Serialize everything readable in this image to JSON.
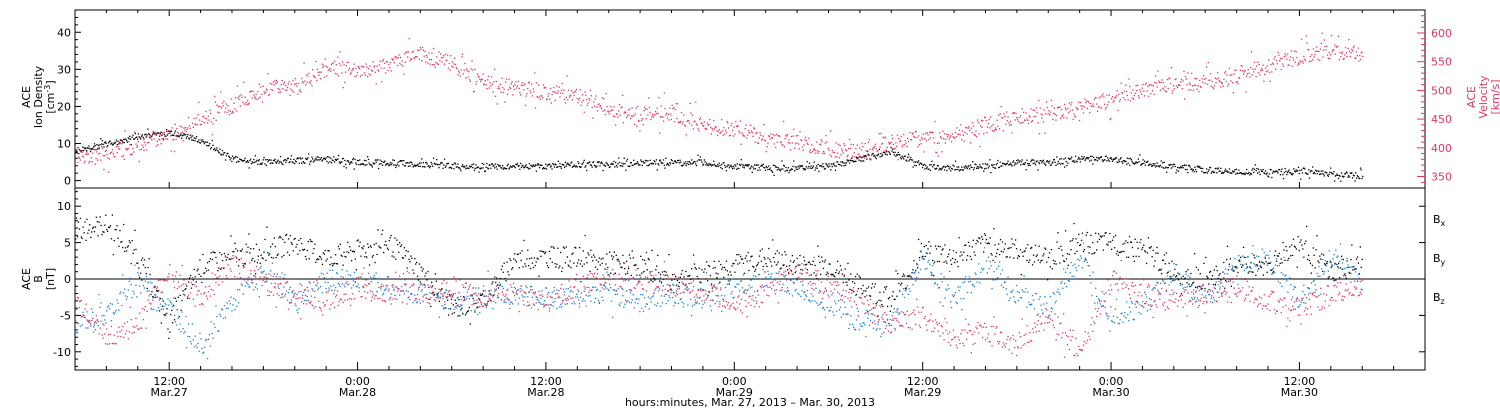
{
  "chart_data": [
    {
      "type": "scatter",
      "panel": "top",
      "ylabel": {
        "line1": "ACE",
        "line2": "Ion Density",
        "unit_pre": "[cm",
        "unit_sup": "-3",
        "unit_post": "]"
      },
      "y2label": {
        "line1": "ACE",
        "line2": "Velocity",
        "unit": "[km/s]"
      },
      "ylim": [
        -2,
        46
      ],
      "y2lim": [
        330,
        640
      ],
      "yticks": [
        "0",
        "10",
        "20",
        "30",
        "40"
      ],
      "y2ticks": [
        "350",
        "400",
        "450",
        "500",
        "550",
        "600"
      ],
      "colors": {
        "density": "#000000",
        "velocity": "#e8335e"
      },
      "series": [
        {
          "name": "",
          "color": "#000000",
          "axis": "left",
          "x_hours": [
            0,
            2,
            4,
            6,
            8,
            10,
            12,
            14,
            16,
            18,
            20,
            22,
            24,
            26,
            28,
            30,
            32,
            34,
            36,
            38,
            40,
            42,
            44,
            46,
            48,
            50,
            52,
            54,
            56,
            58,
            60,
            62,
            64,
            66,
            68,
            70,
            72,
            74,
            76,
            78,
            80,
            82
          ],
          "values": [
            8,
            10,
            12,
            13,
            11,
            6,
            5,
            5.5,
            6,
            5,
            5,
            4.5,
            4,
            4,
            4,
            4,
            4.5,
            4.5,
            5,
            5,
            5,
            4,
            3.5,
            3.5,
            4,
            6,
            8,
            4,
            3.5,
            4,
            5,
            5,
            6,
            6,
            5,
            4,
            3,
            2.5,
            2.5,
            2.5,
            2,
            1.5
          ]
        },
        {
          "name": "",
          "color": "#e8335e",
          "axis": "right",
          "x_hours": [
            0,
            2,
            4,
            6,
            8,
            10,
            12,
            14,
            16,
            18,
            20,
            22,
            24,
            26,
            28,
            30,
            32,
            34,
            36,
            38,
            40,
            42,
            44,
            46,
            48,
            50,
            52,
            54,
            56,
            58,
            60,
            62,
            64,
            66,
            68,
            70,
            72,
            74,
            76,
            78,
            80,
            82
          ],
          "values": [
            385,
            392,
            405,
            425,
            450,
            475,
            505,
            505,
            540,
            535,
            545,
            565,
            548,
            515,
            505,
            498,
            490,
            470,
            460,
            462,
            440,
            435,
            415,
            410,
            398,
            395,
            410,
            418,
            425,
            440,
            455,
            460,
            470,
            485,
            500,
            510,
            515,
            525,
            545,
            560,
            570,
            565
          ]
        }
      ]
    },
    {
      "type": "scatter",
      "panel": "bottom",
      "ylabel": {
        "line1": "ACE",
        "line2": "B",
        "unit": "[nT]"
      },
      "ylim": [
        -12.5,
        12.5
      ],
      "yticks": [
        "10",
        "5",
        "0",
        "-5",
        "-10"
      ],
      "zero_line": true,
      "legend": {
        "placement": "right",
        "entries": [
          {
            "base": "B",
            "sub": "x",
            "color": "#000000"
          },
          {
            "base": "B",
            "sub": "y",
            "color": "#1a7fdb"
          },
          {
            "base": "B",
            "sub": "z",
            "color": "#e8335e"
          }
        ]
      },
      "series": [
        {
          "name": "Bx",
          "color": "#000000",
          "x_hours": [
            0,
            2,
            4,
            6,
            8,
            10,
            12,
            14,
            16,
            18,
            20,
            22,
            24,
            26,
            28,
            30,
            32,
            34,
            36,
            38,
            40,
            42,
            44,
            46,
            48,
            50,
            52,
            54,
            56,
            58,
            60,
            62,
            64,
            66,
            68,
            70,
            72,
            74,
            76,
            78,
            80,
            82
          ],
          "values": [
            7,
            7.5,
            3,
            -6,
            2,
            3,
            4,
            5,
            3,
            4,
            5,
            1,
            -4,
            -3,
            3,
            3,
            3,
            2,
            2,
            0,
            1,
            2,
            3,
            2,
            2,
            -1,
            -3,
            4,
            3,
            5,
            4,
            3,
            5,
            5,
            4,
            1,
            0,
            2,
            2,
            5,
            1,
            2
          ]
        },
        {
          "name": "By",
          "color": "#1a7fdb",
          "x_hours": [
            0,
            2,
            4,
            6,
            8,
            10,
            12,
            14,
            16,
            18,
            20,
            22,
            24,
            26,
            28,
            30,
            32,
            34,
            36,
            38,
            40,
            42,
            44,
            46,
            48,
            50,
            52,
            54,
            56,
            58,
            60,
            62,
            64,
            66,
            68,
            70,
            72,
            74,
            76,
            78,
            80,
            82
          ],
          "values": [
            -6,
            -5,
            0,
            -4,
            -9,
            -3,
            1,
            -3,
            0,
            0,
            -1,
            -2,
            -3,
            -2,
            -2,
            -2.5,
            -2.5,
            -2,
            -3,
            -2,
            -2.5,
            -1,
            0,
            -1,
            -3,
            -6,
            -6,
            3,
            -3,
            2,
            -2,
            -4,
            3,
            -5,
            -4,
            1,
            -3,
            2,
            3,
            -3,
            3,
            0
          ]
        },
        {
          "name": "Bz",
          "color": "#e8335e",
          "x_hours": [
            0,
            2,
            4,
            6,
            8,
            10,
            12,
            14,
            16,
            18,
            20,
            22,
            24,
            26,
            28,
            30,
            32,
            34,
            36,
            38,
            40,
            42,
            44,
            46,
            48,
            50,
            52,
            54,
            56,
            58,
            60,
            62,
            64,
            66,
            68,
            70,
            72,
            74,
            76,
            78,
            80,
            82
          ],
          "values": [
            -3,
            -8,
            -6,
            1,
            -3,
            2,
            0,
            -2,
            -3,
            -1,
            -2,
            -2,
            -1,
            -2.5,
            -2,
            -3,
            -1,
            0,
            0,
            -1,
            -2,
            -3,
            -2,
            1,
            -1,
            -3,
            -6,
            -5,
            -8,
            -7,
            -9,
            -5,
            -10,
            0,
            -2,
            -3,
            -2,
            -1,
            -3,
            -4,
            -2,
            -1
          ]
        }
      ]
    }
  ],
  "x_axis": {
    "xlim_hours": [
      0,
      86
    ],
    "ticks": [
      {
        "hours": 6,
        "time": "12:00",
        "date": "Mar.27"
      },
      {
        "hours": 18,
        "time": "0:00",
        "date": "Mar.28"
      },
      {
        "hours": 30,
        "time": "12:00",
        "date": "Mar.28"
      },
      {
        "hours": 42,
        "time": "0:00",
        "date": "Mar.29"
      },
      {
        "hours": 54,
        "time": "12:00",
        "date": "Mar.29"
      },
      {
        "hours": 66,
        "time": "0:00",
        "date": "Mar.30"
      },
      {
        "hours": 78,
        "time": "12:00",
        "date": "Mar.30"
      }
    ],
    "title": "hours:minutes, Mar. 27, 2013 – Mar. 30, 2013"
  }
}
